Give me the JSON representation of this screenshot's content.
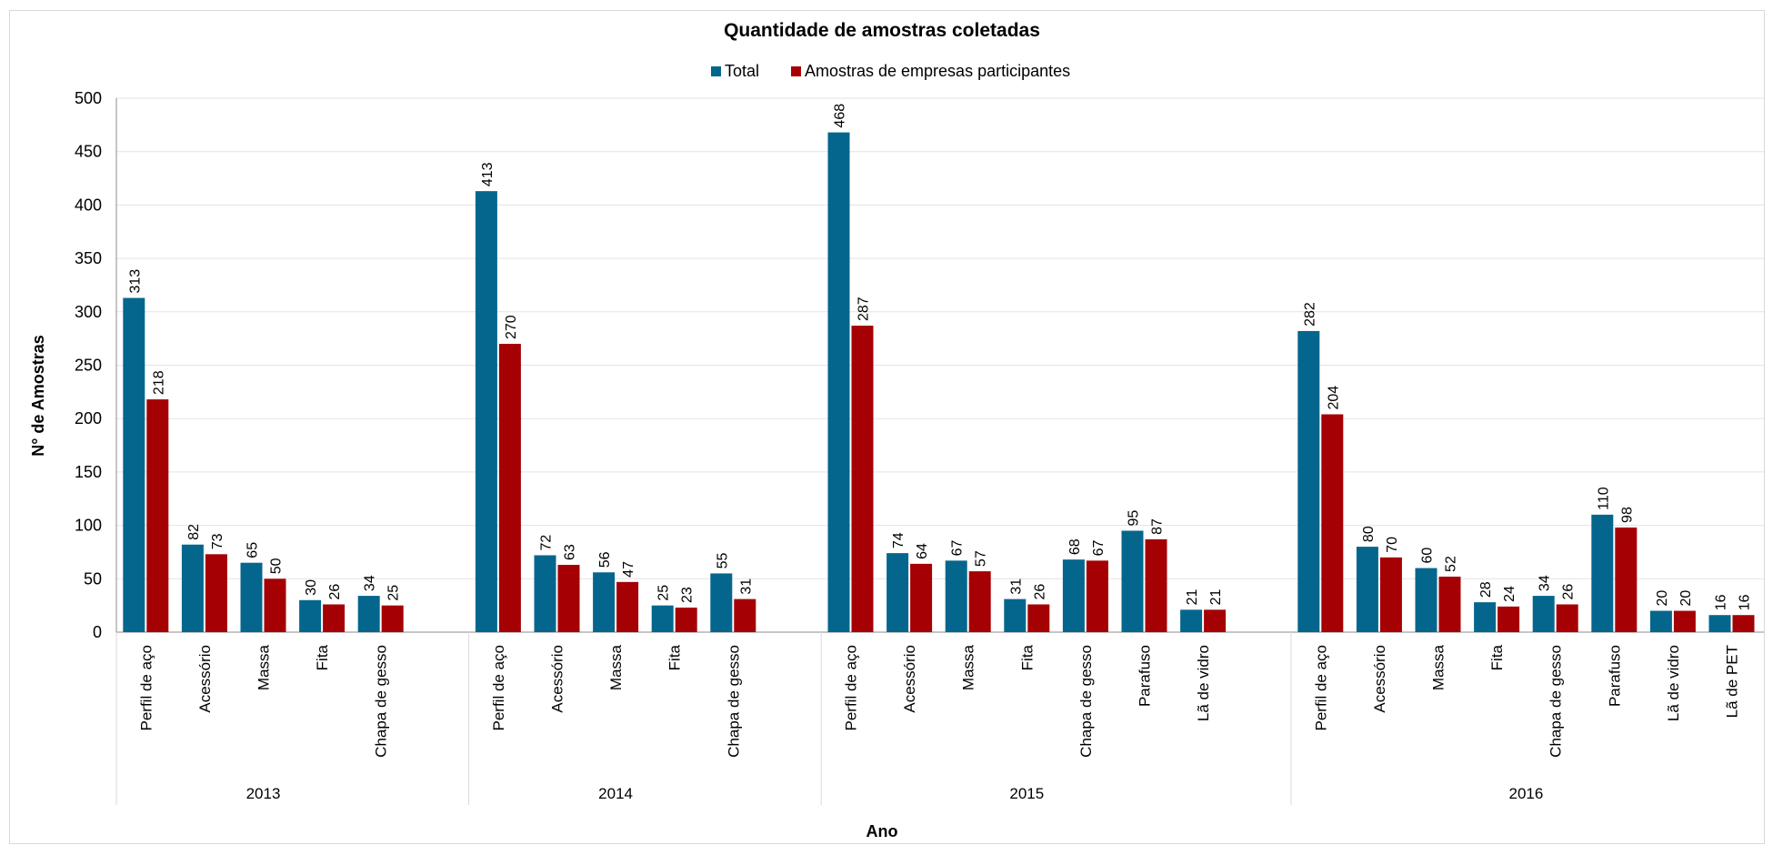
{
  "chart_data": {
    "type": "bar",
    "title": "Quantidade de amostras coletadas",
    "xlabel": "Ano",
    "ylabel": "N° de Amostras",
    "ylim": [
      0,
      500
    ],
    "yticks": [
      0,
      50,
      100,
      150,
      200,
      250,
      300,
      350,
      400,
      450,
      500
    ],
    "grid": true,
    "legend_position": "top-center",
    "colors": {
      "total": "#05668d",
      "participantes": "#a50104"
    },
    "series_names": [
      "Total",
      "Amostras de empresas participantes"
    ],
    "groups": [
      {
        "year": "2013",
        "categories": [
          "Perfil de aço",
          "Acessório",
          "Massa",
          "Fita",
          "Chapa de gesso"
        ],
        "total": [
          313,
          82,
          65,
          30,
          34
        ],
        "participantes": [
          218,
          73,
          50,
          26,
          25
        ]
      },
      {
        "year": "2014",
        "categories": [
          "Perfil de aço",
          "Acessório",
          "Massa",
          "Fita",
          "Chapa de gesso"
        ],
        "total": [
          413,
          72,
          56,
          25,
          55
        ],
        "participantes": [
          270,
          63,
          47,
          23,
          31
        ]
      },
      {
        "year": "2015",
        "categories": [
          "Perfil de aço",
          "Acessório",
          "Massa",
          "Fita",
          "Chapa de gesso",
          "Parafuso",
          "Lã de vidro"
        ],
        "total": [
          468,
          74,
          67,
          31,
          68,
          95,
          21
        ],
        "participantes": [
          287,
          64,
          57,
          26,
          67,
          87,
          21
        ]
      },
      {
        "year": "2016",
        "categories": [
          "Perfil de aço",
          "Acessório",
          "Massa",
          "Fita",
          "Chapa de gesso",
          "Parafuso",
          "Lã de vidro",
          "Lã de PET"
        ],
        "total": [
          282,
          80,
          60,
          28,
          34,
          110,
          20,
          16
        ],
        "participantes": [
          204,
          70,
          52,
          24,
          26,
          98,
          20,
          16
        ]
      }
    ]
  }
}
